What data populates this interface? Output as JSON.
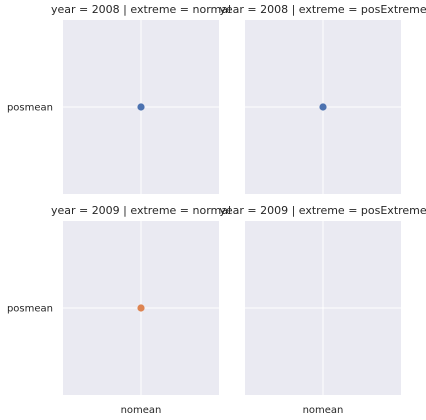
{
  "chart_data": {
    "type": "scatter",
    "x_categories": [
      "nomean"
    ],
    "y_categories": [
      "posmean"
    ],
    "grid": true,
    "colors": {
      "background": "#eaeaf2",
      "grid": "#ffffff",
      "series_2008": "#4c72b0",
      "series_2009": "#dd8452"
    },
    "facets": [
      {
        "title": "year = 2008 | extreme = normal",
        "row": 0,
        "col": 0,
        "color": "#4c72b0",
        "points": [
          {
            "x": "nomean",
            "y": "posmean"
          }
        ]
      },
      {
        "title": "year = 2008 | extreme = posExtreme",
        "row": 0,
        "col": 1,
        "color": "#4c72b0",
        "points": [
          {
            "x": "nomean",
            "y": "posmean"
          }
        ]
      },
      {
        "title": "year = 2009 | extreme = normal",
        "row": 1,
        "col": 0,
        "color": "#dd8452",
        "points": [
          {
            "x": "nomean",
            "y": "posmean"
          }
        ]
      },
      {
        "title": "year = 2009 | extreme = posExtreme",
        "row": 1,
        "col": 1,
        "color": "#dd8452",
        "points": []
      }
    ]
  }
}
